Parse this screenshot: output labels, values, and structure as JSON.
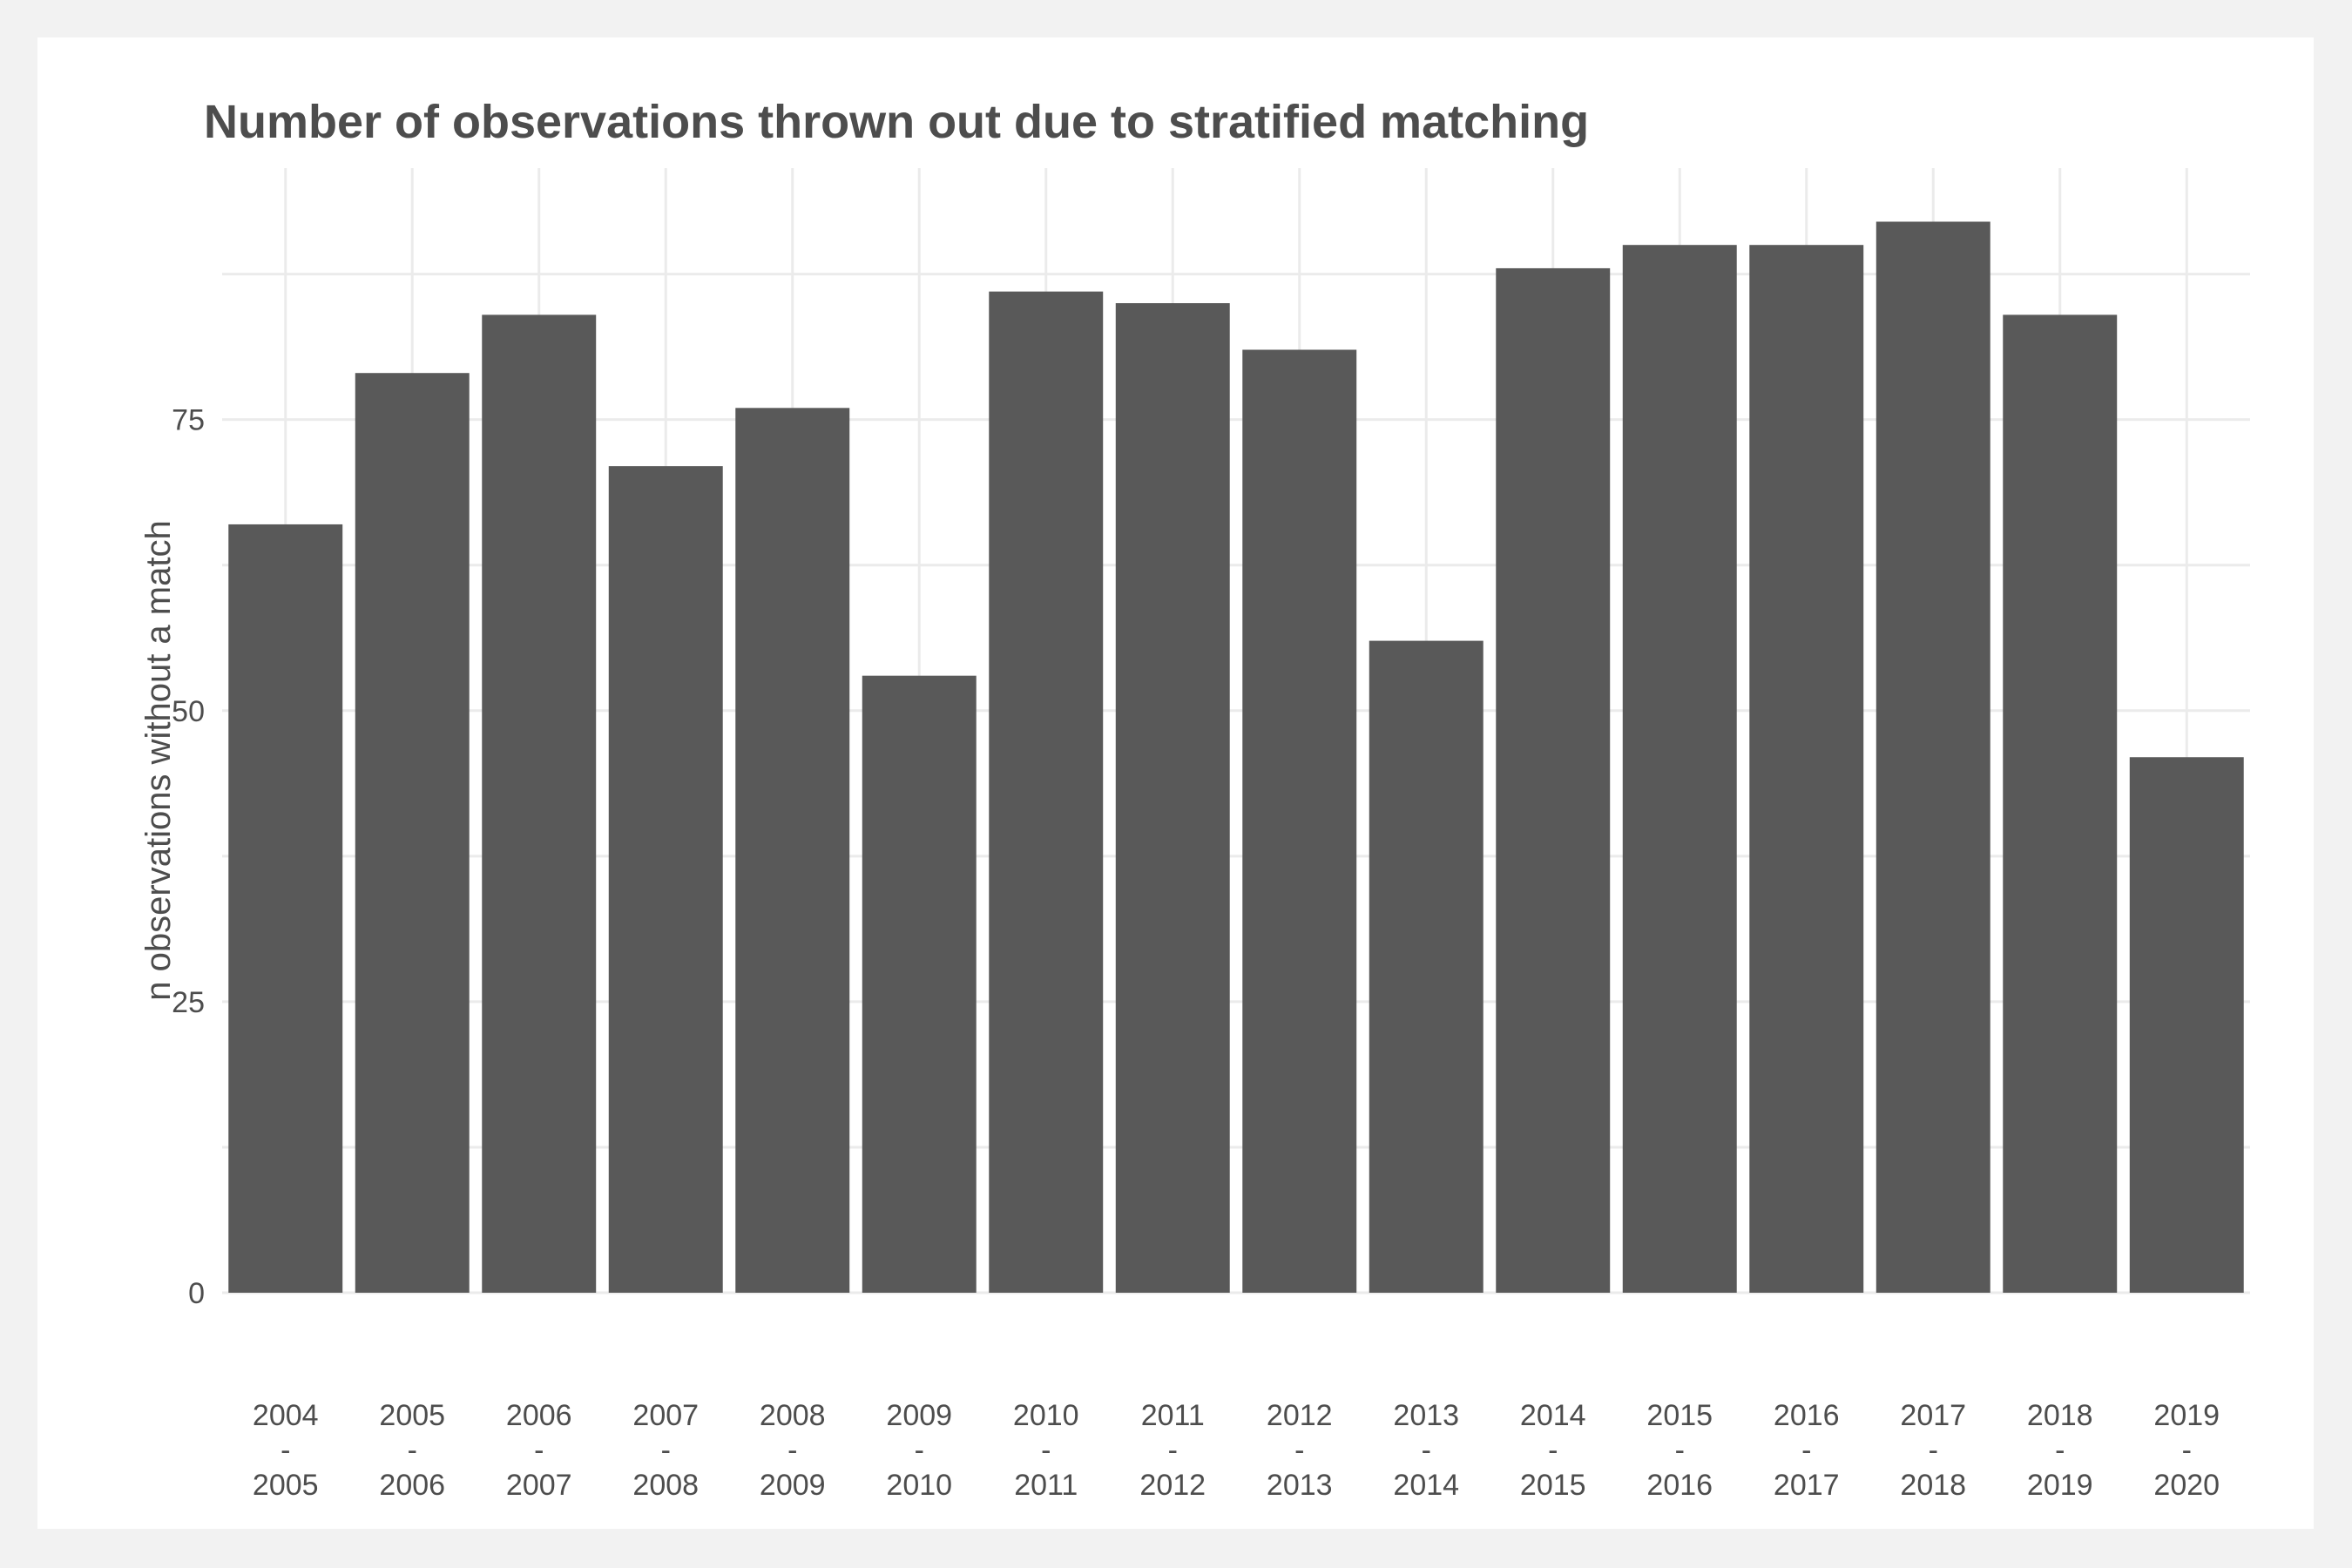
{
  "chart_data": {
    "type": "bar",
    "title": "Number of observations thrown out due to stratified matching",
    "xlabel": "",
    "ylabel": "n observations without a match",
    "categories": [
      {
        "from": "2004",
        "sep": "-",
        "to": "2005"
      },
      {
        "from": "2005",
        "sep": "-",
        "to": "2006"
      },
      {
        "from": "2006",
        "sep": "-",
        "to": "2007"
      },
      {
        "from": "2007",
        "sep": "-",
        "to": "2008"
      },
      {
        "from": "2008",
        "sep": "-",
        "to": "2009"
      },
      {
        "from": "2009",
        "sep": "-",
        "to": "2010"
      },
      {
        "from": "2010",
        "sep": "-",
        "to": "2011"
      },
      {
        "from": "2011",
        "sep": "-",
        "to": "2012"
      },
      {
        "from": "2012",
        "sep": "-",
        "to": "2013"
      },
      {
        "from": "2013",
        "sep": "-",
        "to": "2014"
      },
      {
        "from": "2014",
        "sep": "-",
        "to": "2015"
      },
      {
        "from": "2015",
        "sep": "-",
        "to": "2016"
      },
      {
        "from": "2016",
        "sep": "-",
        "to": "2017"
      },
      {
        "from": "2017",
        "sep": "-",
        "to": "2018"
      },
      {
        "from": "2018",
        "sep": "-",
        "to": "2019"
      },
      {
        "from": "2019",
        "sep": "-",
        "to": "2020"
      }
    ],
    "values": [
      66,
      79,
      84,
      71,
      76,
      53,
      86,
      85,
      81,
      56,
      88,
      90,
      90,
      92,
      84,
      46
    ],
    "yticks": [
      0,
      25,
      50,
      75
    ],
    "ylim": [
      0,
      96.6
    ],
    "grid": true,
    "legend": "none",
    "bar_color": "#595959",
    "grid_color": "#ebebeb",
    "text_color": "#4d4d4d"
  }
}
